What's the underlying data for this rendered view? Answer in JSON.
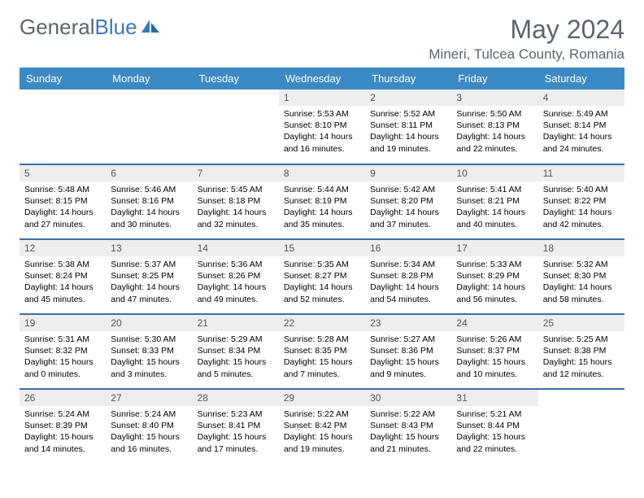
{
  "logo": {
    "text_a": "General",
    "text_b": "Blue"
  },
  "title": "May 2024",
  "location": "Mineri, Tulcea County, Romania",
  "colors": {
    "header_bg": "#3b8ac4",
    "header_text": "#ffffff",
    "row_divider": "#3a6fa5",
    "daynum_bg": "#eceef0",
    "text_muted": "#5a6570",
    "logo_blue": "#3a7ab8"
  },
  "weekdays": [
    "Sunday",
    "Monday",
    "Tuesday",
    "Wednesday",
    "Thursday",
    "Friday",
    "Saturday"
  ],
  "weeks": [
    [
      {
        "n": "",
        "lines": [
          "",
          "",
          "",
          ""
        ]
      },
      {
        "n": "",
        "lines": [
          "",
          "",
          "",
          ""
        ]
      },
      {
        "n": "",
        "lines": [
          "",
          "",
          "",
          ""
        ]
      },
      {
        "n": "1",
        "lines": [
          "Sunrise: 5:53 AM",
          "Sunset: 8:10 PM",
          "Daylight: 14 hours",
          "and 16 minutes."
        ]
      },
      {
        "n": "2",
        "lines": [
          "Sunrise: 5:52 AM",
          "Sunset: 8:11 PM",
          "Daylight: 14 hours",
          "and 19 minutes."
        ]
      },
      {
        "n": "3",
        "lines": [
          "Sunrise: 5:50 AM",
          "Sunset: 8:13 PM",
          "Daylight: 14 hours",
          "and 22 minutes."
        ]
      },
      {
        "n": "4",
        "lines": [
          "Sunrise: 5:49 AM",
          "Sunset: 8:14 PM",
          "Daylight: 14 hours",
          "and 24 minutes."
        ]
      }
    ],
    [
      {
        "n": "5",
        "lines": [
          "Sunrise: 5:48 AM",
          "Sunset: 8:15 PM",
          "Daylight: 14 hours",
          "and 27 minutes."
        ]
      },
      {
        "n": "6",
        "lines": [
          "Sunrise: 5:46 AM",
          "Sunset: 8:16 PM",
          "Daylight: 14 hours",
          "and 30 minutes."
        ]
      },
      {
        "n": "7",
        "lines": [
          "Sunrise: 5:45 AM",
          "Sunset: 8:18 PM",
          "Daylight: 14 hours",
          "and 32 minutes."
        ]
      },
      {
        "n": "8",
        "lines": [
          "Sunrise: 5:44 AM",
          "Sunset: 8:19 PM",
          "Daylight: 14 hours",
          "and 35 minutes."
        ]
      },
      {
        "n": "9",
        "lines": [
          "Sunrise: 5:42 AM",
          "Sunset: 8:20 PM",
          "Daylight: 14 hours",
          "and 37 minutes."
        ]
      },
      {
        "n": "10",
        "lines": [
          "Sunrise: 5:41 AM",
          "Sunset: 8:21 PM",
          "Daylight: 14 hours",
          "and 40 minutes."
        ]
      },
      {
        "n": "11",
        "lines": [
          "Sunrise: 5:40 AM",
          "Sunset: 8:22 PM",
          "Daylight: 14 hours",
          "and 42 minutes."
        ]
      }
    ],
    [
      {
        "n": "12",
        "lines": [
          "Sunrise: 5:38 AM",
          "Sunset: 8:24 PM",
          "Daylight: 14 hours",
          "and 45 minutes."
        ]
      },
      {
        "n": "13",
        "lines": [
          "Sunrise: 5:37 AM",
          "Sunset: 8:25 PM",
          "Daylight: 14 hours",
          "and 47 minutes."
        ]
      },
      {
        "n": "14",
        "lines": [
          "Sunrise: 5:36 AM",
          "Sunset: 8:26 PM",
          "Daylight: 14 hours",
          "and 49 minutes."
        ]
      },
      {
        "n": "15",
        "lines": [
          "Sunrise: 5:35 AM",
          "Sunset: 8:27 PM",
          "Daylight: 14 hours",
          "and 52 minutes."
        ]
      },
      {
        "n": "16",
        "lines": [
          "Sunrise: 5:34 AM",
          "Sunset: 8:28 PM",
          "Daylight: 14 hours",
          "and 54 minutes."
        ]
      },
      {
        "n": "17",
        "lines": [
          "Sunrise: 5:33 AM",
          "Sunset: 8:29 PM",
          "Daylight: 14 hours",
          "and 56 minutes."
        ]
      },
      {
        "n": "18",
        "lines": [
          "Sunrise: 5:32 AM",
          "Sunset: 8:30 PM",
          "Daylight: 14 hours",
          "and 58 minutes."
        ]
      }
    ],
    [
      {
        "n": "19",
        "lines": [
          "Sunrise: 5:31 AM",
          "Sunset: 8:32 PM",
          "Daylight: 15 hours",
          "and 0 minutes."
        ]
      },
      {
        "n": "20",
        "lines": [
          "Sunrise: 5:30 AM",
          "Sunset: 8:33 PM",
          "Daylight: 15 hours",
          "and 3 minutes."
        ]
      },
      {
        "n": "21",
        "lines": [
          "Sunrise: 5:29 AM",
          "Sunset: 8:34 PM",
          "Daylight: 15 hours",
          "and 5 minutes."
        ]
      },
      {
        "n": "22",
        "lines": [
          "Sunrise: 5:28 AM",
          "Sunset: 8:35 PM",
          "Daylight: 15 hours",
          "and 7 minutes."
        ]
      },
      {
        "n": "23",
        "lines": [
          "Sunrise: 5:27 AM",
          "Sunset: 8:36 PM",
          "Daylight: 15 hours",
          "and 9 minutes."
        ]
      },
      {
        "n": "24",
        "lines": [
          "Sunrise: 5:26 AM",
          "Sunset: 8:37 PM",
          "Daylight: 15 hours",
          "and 10 minutes."
        ]
      },
      {
        "n": "25",
        "lines": [
          "Sunrise: 5:25 AM",
          "Sunset: 8:38 PM",
          "Daylight: 15 hours",
          "and 12 minutes."
        ]
      }
    ],
    [
      {
        "n": "26",
        "lines": [
          "Sunrise: 5:24 AM",
          "Sunset: 8:39 PM",
          "Daylight: 15 hours",
          "and 14 minutes."
        ]
      },
      {
        "n": "27",
        "lines": [
          "Sunrise: 5:24 AM",
          "Sunset: 8:40 PM",
          "Daylight: 15 hours",
          "and 16 minutes."
        ]
      },
      {
        "n": "28",
        "lines": [
          "Sunrise: 5:23 AM",
          "Sunset: 8:41 PM",
          "Daylight: 15 hours",
          "and 17 minutes."
        ]
      },
      {
        "n": "29",
        "lines": [
          "Sunrise: 5:22 AM",
          "Sunset: 8:42 PM",
          "Daylight: 15 hours",
          "and 19 minutes."
        ]
      },
      {
        "n": "30",
        "lines": [
          "Sunrise: 5:22 AM",
          "Sunset: 8:43 PM",
          "Daylight: 15 hours",
          "and 21 minutes."
        ]
      },
      {
        "n": "31",
        "lines": [
          "Sunrise: 5:21 AM",
          "Sunset: 8:44 PM",
          "Daylight: 15 hours",
          "and 22 minutes."
        ]
      },
      {
        "n": "",
        "lines": [
          "",
          "",
          "",
          ""
        ]
      }
    ]
  ]
}
